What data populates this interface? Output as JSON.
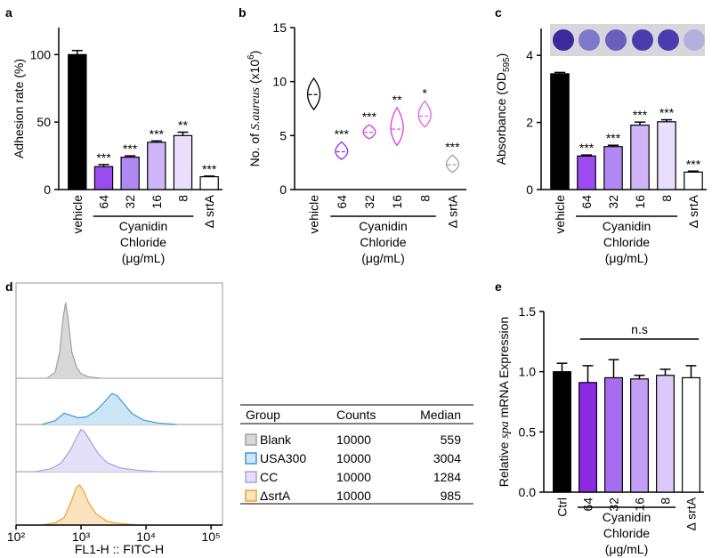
{
  "chart_data": [
    {
      "type": "bar",
      "panel": "a",
      "y_label": [
        {
          "text": "Adhesion rate (%)"
        }
      ],
      "categories": [
        "vehicle",
        "64",
        "32",
        "16",
        "8",
        "Δ srtA"
      ],
      "values": [
        100,
        17,
        24,
        35,
        40,
        9.5
      ],
      "errors": [
        3,
        1.5,
        1,
        1,
        2.5,
        0.5
      ],
      "annotations": [
        null,
        "***",
        "***",
        "***",
        "**",
        "***"
      ],
      "colors": [
        "#000000",
        "#9a4cf0",
        "#b088f4",
        "#cdb5f8",
        "#e9defc",
        "#ffffff"
      ],
      "ylim": [
        0,
        120
      ],
      "yticks": [
        0,
        50,
        100
      ],
      "group_label": [
        "Cyanidin",
        "Chloride",
        "(μg/mL)"
      ]
    },
    {
      "type": "violin",
      "panel": "b",
      "y_label": [
        {
          "text": "No. of "
        },
        {
          "text": "S.aureus",
          "style": "italic"
        },
        {
          "text": " (x10"
        },
        {
          "text": "6",
          "style": "sup"
        },
        {
          "text": ")"
        }
      ],
      "categories": [
        "vehicle",
        "64",
        "32",
        "16",
        "8",
        "Δ srtA"
      ],
      "median": [
        8.8,
        3.5,
        5.3,
        5.6,
        6.8,
        2.3
      ],
      "min": [
        7.4,
        2.8,
        4.7,
        4.1,
        5.8,
        1.6
      ],
      "max": [
        10.3,
        4.4,
        6.0,
        7.6,
        8.2,
        3.2
      ],
      "annotations": [
        null,
        "***",
        "***",
        "**",
        "*",
        "***"
      ],
      "colors": [
        "#000000",
        "#8a2be2",
        "#c040e0",
        "#e040e0",
        "#e060e8",
        "#a0a0a0"
      ],
      "ylim": [
        0,
        15
      ],
      "yticks": [
        0,
        5,
        10,
        15
      ],
      "group_label": [
        "Cyanidin",
        "Chloride",
        "(μg/mL)"
      ]
    },
    {
      "type": "bar",
      "panel": "c",
      "y_label": [
        {
          "text": "Absorbance (OD"
        },
        {
          "text": "595",
          "style": "sub"
        },
        {
          "text": ")"
        }
      ],
      "categories": [
        "vehicle",
        "64",
        "32",
        "16",
        "8",
        "Δ srtA"
      ],
      "values": [
        3.45,
        1.0,
        1.28,
        1.92,
        2.02,
        0.52
      ],
      "errors": [
        0.04,
        0.03,
        0.04,
        0.09,
        0.06,
        0.03
      ],
      "annotations": [
        null,
        "***",
        "***",
        "***",
        "***",
        "***"
      ],
      "colors": [
        "#000000",
        "#9a4cf0",
        "#b088f4",
        "#cdb5f8",
        "#e9defc",
        "#ffffff"
      ],
      "ylim": [
        0,
        4.8
      ],
      "yticks": [
        0,
        2,
        4
      ],
      "group_label": [
        "Cyanidin",
        "Chloride",
        "(μg/mL)"
      ]
    },
    {
      "type": "flow_histogram",
      "panel": "d",
      "x_label": "FL1-H :: FITC-H",
      "log_x": true,
      "xlim": [
        100,
        150000
      ],
      "xticks": [
        {
          "value": 100,
          "label": "10²"
        },
        {
          "value": 1000,
          "label": "10³"
        },
        {
          "value": 10000,
          "label": "10⁴"
        },
        {
          "value": 100000,
          "label": "10⁵"
        }
      ],
      "series": [
        {
          "color": "#a0a0a0",
          "fill": "#d8d8d8",
          "x": [
            300,
            400,
            470,
            530,
            580,
            640,
            720,
            850,
            1000,
            1300,
            2000
          ],
          "values": [
            0,
            0.08,
            0.35,
            0.8,
            1.0,
            0.75,
            0.35,
            0.15,
            0.06,
            0.02,
            0
          ]
        },
        {
          "color": "#3a9ad9",
          "fill": "#cde6f7",
          "x": [
            250,
            400,
            550,
            700,
            900,
            1200,
            1700,
            2300,
            3000,
            3600,
            4500,
            6000,
            9000,
            15000,
            30000
          ],
          "values": [
            0,
            0.05,
            0.15,
            0.12,
            0.09,
            0.1,
            0.18,
            0.3,
            0.41,
            0.38,
            0.28,
            0.15,
            0.06,
            0.02,
            0
          ]
        },
        {
          "color": "#a8a0e0",
          "fill": "#e4e0f8",
          "x": [
            200,
            350,
            500,
            700,
            850,
            1000,
            1150,
            1400,
            1800,
            2500,
            4000,
            7000,
            15000
          ],
          "values": [
            0,
            0.04,
            0.12,
            0.3,
            0.45,
            0.56,
            0.52,
            0.4,
            0.25,
            0.12,
            0.05,
            0.02,
            0
          ]
        },
        {
          "color": "#f0a030",
          "fill": "#fbe3c0",
          "x": [
            250,
            400,
            550,
            700,
            850,
            950,
            1100,
            1300,
            1700,
            2500,
            4000,
            8000
          ],
          "values": [
            0,
            0.03,
            0.1,
            0.3,
            0.5,
            0.53,
            0.45,
            0.3,
            0.15,
            0.05,
            0.02,
            0
          ]
        }
      ],
      "table": {
        "columns": [
          "Group",
          "Counts",
          "Median"
        ],
        "rows": [
          [
            "Blank",
            10000,
            559
          ],
          [
            "USA300",
            10000,
            3004
          ],
          [
            "CC",
            10000,
            1284
          ],
          [
            "ΔsrtA",
            10000,
            985
          ]
        ]
      }
    },
    {
      "type": "bar",
      "panel": "e",
      "y_label": [
        {
          "text": "Relative "
        },
        {
          "text": "spa",
          "style": "italic"
        },
        {
          "text": " mRNA Expression"
        }
      ],
      "categories": [
        "Ctrl",
        "64",
        "32",
        "16",
        "8",
        "Δ srtA"
      ],
      "values": [
        1.0,
        0.91,
        0.95,
        0.94,
        0.97,
        0.95
      ],
      "errors": [
        0.07,
        0.14,
        0.15,
        0.03,
        0.05,
        0.1
      ],
      "colors": [
        "#000000",
        "#8a2be2",
        "#a56ef0",
        "#c29ef5",
        "#ddc8fa",
        "#ffffff"
      ],
      "ylim": [
        0,
        1.5
      ],
      "yticks": [
        {
          "value": 0,
          "label": "0.0"
        },
        0.5,
        {
          "value": 1,
          "label": "1.0"
        },
        1.5
      ],
      "bracket_label": "n.s",
      "group_label": [
        "Cyanidin",
        "Chloride",
        "(μg/mL)"
      ]
    }
  ]
}
